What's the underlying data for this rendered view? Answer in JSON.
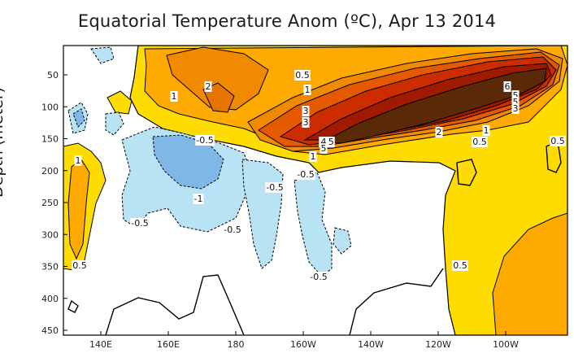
{
  "chart_data": {
    "type": "heatmap",
    "title": "Equatorial Temperature Anom (ºC), Apr 13 2014",
    "ylabel": "Depth (meter)",
    "xlabel": "",
    "x_ticks": [
      "140E",
      "160E",
      "180",
      "160W",
      "140W",
      "120W",
      "100W"
    ],
    "y_ticks": [
      "50",
      "100",
      "150",
      "200",
      "250",
      "300",
      "350",
      "400",
      "450"
    ],
    "x_range": [
      "~130E",
      "~85W"
    ],
    "y_range": [
      0,
      455
    ],
    "contour_labels": [
      {
        "value": "-0.5",
        "lon": "~166E",
        "depth": 170
      },
      {
        "value": "-0.5",
        "lon": "~161W",
        "depth": 212
      },
      {
        "value": "-0.5",
        "lon": "~169W",
        "depth": 228
      },
      {
        "value": "-1",
        "lon": "~166E",
        "depth": 242
      },
      {
        "value": "-0.5",
        "lon": "~148E",
        "depth": 272
      },
      {
        "value": "-0.5",
        "lon": "~175E",
        "depth": 282
      },
      {
        "value": "-0.5",
        "lon": "~158W",
        "depth": 338
      },
      {
        "value": "0.5",
        "lon": "~137E",
        "depth": 325
      },
      {
        "value": "0.5",
        "lon": "~154W",
        "depth": 68
      },
      {
        "value": "0.5",
        "lon": "~154W",
        "depth": 170
      },
      {
        "value": "0.5",
        "lon": "~111W",
        "depth": 172
      },
      {
        "value": "0.5",
        "lon": "~89W",
        "depth": 172
      },
      {
        "value": "0.5",
        "lon": "~116W",
        "depth": 325
      },
      {
        "value": "1",
        "lon": "~150E",
        "depth": 117
      },
      {
        "value": "1",
        "lon": "~153W",
        "depth": 103
      },
      {
        "value": "1",
        "lon": "~139E",
        "depth": 193
      },
      {
        "value": "1",
        "lon": "~157W",
        "depth": 188
      },
      {
        "value": "1",
        "lon": "~108W",
        "depth": 162
      },
      {
        "value": "2",
        "lon": "~168E",
        "depth": 102
      },
      {
        "value": "2",
        "lon": "~120W",
        "depth": 160
      },
      {
        "value": "3",
        "lon": "~168W",
        "depth": 133
      },
      {
        "value": "3",
        "lon": "~168W",
        "depth": 148
      },
      {
        "value": "4",
        "lon": "~158W",
        "depth": 170
      },
      {
        "value": "5",
        "lon": "~157W",
        "depth": 178
      },
      {
        "value": "6",
        "lon": "~103W",
        "depth": 102
      },
      {
        "value": "5",
        "lon": "~101W",
        "depth": 115
      },
      {
        "value": "5",
        "lon": "~101W",
        "depth": 123
      },
      {
        "value": "3",
        "lon": "~100W",
        "depth": 130
      }
    ],
    "value_range": [
      -1.5,
      7
    ],
    "legend": "none",
    "grid": false
  }
}
